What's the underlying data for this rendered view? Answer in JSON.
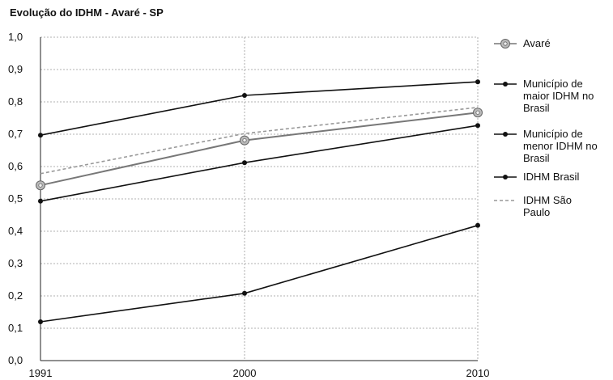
{
  "chart_data": {
    "type": "line",
    "title": "Evolução do IDHM - Avaré - SP",
    "xlabel": "",
    "ylabel": "",
    "categories": [
      "1991",
      "2000",
      "2010"
    ],
    "ylim": [
      0,
      1.0
    ],
    "yticks": [
      "0,0",
      "0,1",
      "0,2",
      "0,3",
      "0,4",
      "0,5",
      "0,6",
      "0,7",
      "0,8",
      "0,9",
      "1,0"
    ],
    "grid": true,
    "legend_position": "right",
    "series": [
      {
        "name": "Avaré",
        "values": [
          0.542,
          0.681,
          0.767
        ],
        "color": "#777777",
        "marker": "flower",
        "dash": ""
      },
      {
        "name": "Município de maior IDHM no Brasil",
        "values": [
          0.697,
          0.82,
          0.862
        ],
        "color": "#111111",
        "marker": "dot",
        "dash": ""
      },
      {
        "name": "Município de menor IDHM no Brasil",
        "values": [
          0.12,
          0.208,
          0.418
        ],
        "color": "#111111",
        "marker": "dot",
        "dash": ""
      },
      {
        "name": "IDHM Brasil",
        "values": [
          0.493,
          0.612,
          0.727
        ],
        "color": "#111111",
        "marker": "dot",
        "dash": ""
      },
      {
        "name": "IDHM São Paulo",
        "values": [
          0.578,
          0.702,
          0.783
        ],
        "color": "#999999",
        "marker": "none",
        "dash": "4 3"
      }
    ],
    "legend_lines": [
      [
        "Avaré"
      ],
      [
        "Município de",
        "maior IDHM no",
        "Brasil"
      ],
      [
        "Município de",
        "menor IDHM no",
        "Brasil"
      ],
      [
        "IDHM Brasil"
      ],
      [
        "IDHM São",
        "Paulo"
      ]
    ]
  }
}
